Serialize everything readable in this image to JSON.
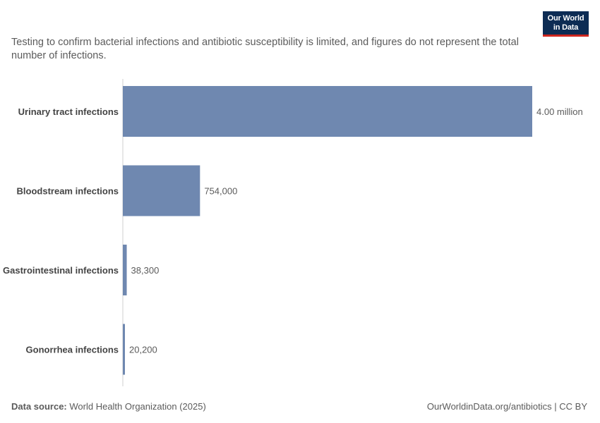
{
  "logo": {
    "line1": "Our World",
    "line2": "in Data"
  },
  "subtitle": "Testing to confirm bacterial infections and antibiotic susceptibility is limited, and figures do not represent the total number of infections.",
  "footer": {
    "source_label": "Data source:",
    "source_value": "World Health Organization (2025)",
    "url_license": "OurWorldinData.org/antibiotics | CC BY"
  },
  "colors": {
    "bar": "#6f88b0",
    "axis": "#cfcfcf",
    "label": "#444444",
    "value": "#5b5b5b"
  },
  "chart_data": {
    "type": "bar",
    "orientation": "horizontal",
    "categories": [
      "Urinary tract infections",
      "Bloodstream infections",
      "Gastrointestinal infections",
      "Gonorrhea infections"
    ],
    "values": [
      4000000,
      754000,
      38300,
      20200
    ],
    "value_labels": [
      "4.00 million",
      "754,000",
      "38,300",
      "20,200"
    ],
    "xlim": [
      0,
      4000000
    ],
    "grid": false
  }
}
